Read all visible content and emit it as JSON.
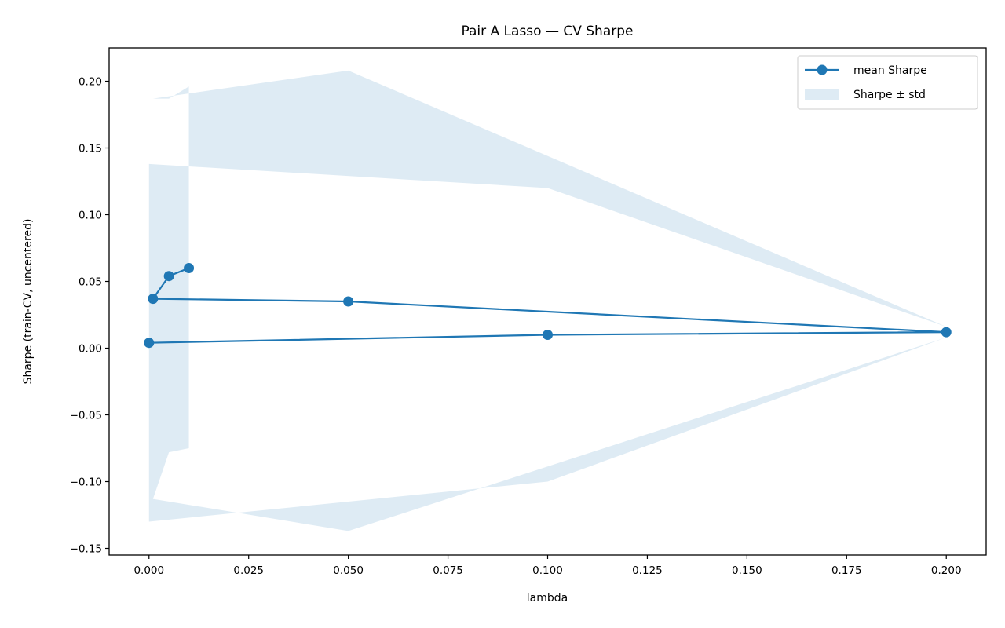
{
  "chart_data": {
    "type": "line",
    "title": "Pair A Lasso — CV Sharpe",
    "xlabel": "lambda",
    "ylabel": "Sharpe (train-CV, uncentered)",
    "xlim": [
      -0.01,
      0.21
    ],
    "ylim": [
      -0.155,
      0.225
    ],
    "xticks": [
      0.0,
      0.025,
      0.05,
      0.075,
      0.1,
      0.125,
      0.15,
      0.175,
      0.2
    ],
    "xtick_labels": [
      "0.000",
      "0.025",
      "0.050",
      "0.075",
      "0.100",
      "0.125",
      "0.150",
      "0.175",
      "0.200"
    ],
    "yticks": [
      -0.15,
      -0.1,
      -0.05,
      0.0,
      0.05,
      0.1,
      0.15,
      0.2
    ],
    "ytick_labels": [
      "−0.15",
      "−0.10",
      "−0.05",
      "0.00",
      "0.05",
      "0.10",
      "0.15",
      "0.20"
    ],
    "grid": false,
    "legend_position": "top-right",
    "series": [
      {
        "name": "mean Sharpe",
        "color": "#1f77b4",
        "points": [
          {
            "x": 0.0,
            "y": 0.004
          },
          {
            "x": 0.1,
            "y": 0.01
          },
          {
            "x": 0.2,
            "y": 0.012
          },
          {
            "x": 0.05,
            "y": 0.035
          },
          {
            "x": 0.001,
            "y": 0.037
          },
          {
            "x": 0.005,
            "y": 0.054
          },
          {
            "x": 0.01,
            "y": 0.06
          }
        ]
      }
    ],
    "band": {
      "name": "Sharpe ± std",
      "color": "#1f77b4",
      "opacity": 0.15,
      "points": [
        {
          "x": 0.0,
          "low": -0.13,
          "high": 0.138
        },
        {
          "x": 0.1,
          "low": -0.1,
          "high": 0.12
        },
        {
          "x": 0.2,
          "low": 0.008,
          "high": 0.016
        },
        {
          "x": 0.05,
          "low": -0.137,
          "high": 0.208
        },
        {
          "x": 0.001,
          "low": -0.113,
          "high": 0.187
        },
        {
          "x": 0.005,
          "low": -0.078,
          "high": 0.187
        },
        {
          "x": 0.01,
          "low": -0.075,
          "high": 0.196
        }
      ]
    }
  }
}
